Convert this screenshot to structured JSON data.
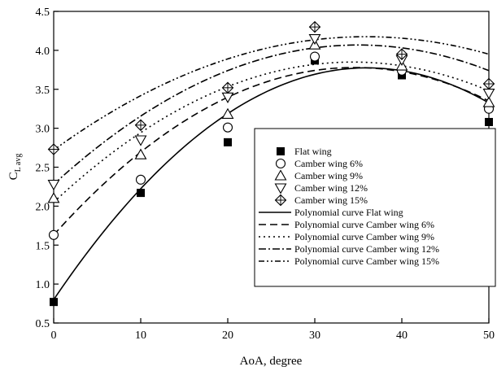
{
  "chart_data": {
    "type": "scatter",
    "xlabel": "AoA, degree",
    "ylabel_main": "C",
    "ylabel_sub": "L avg",
    "xlim": [
      0,
      50
    ],
    "ylim": [
      0.5,
      4.5
    ],
    "xticks": [
      0,
      10,
      20,
      30,
      40,
      50
    ],
    "xtick_labels": [
      "0",
      "10",
      "20",
      "30",
      "40",
      "50"
    ],
    "yticks": [
      0.5,
      1.0,
      1.5,
      2.0,
      2.5,
      3.0,
      3.5,
      4.0,
      4.5
    ],
    "ytick_labels": [
      "0.5",
      "1.0",
      "1.5",
      "2.0",
      "2.5",
      "3.0",
      "3.5",
      "4.0",
      "4.5"
    ],
    "grid": false,
    "legend_position": "center-right",
    "x": [
      0,
      10,
      20,
      30,
      40,
      50
    ],
    "series": [
      {
        "name": "Flat wing",
        "marker": "filled-square",
        "values": [
          0.77,
          2.17,
          2.82,
          3.87,
          3.68,
          3.08
        ]
      },
      {
        "name": "Camber wing 6%",
        "marker": "circle",
        "values": [
          1.63,
          2.34,
          3.01,
          3.92,
          3.74,
          3.25
        ]
      },
      {
        "name": "Camber wing 9%",
        "marker": "triangle-up",
        "values": [
          2.1,
          2.66,
          3.18,
          4.07,
          3.8,
          3.33
        ]
      },
      {
        "name": "Camber wing 12%",
        "marker": "triangle-down",
        "values": [
          2.28,
          2.85,
          3.4,
          4.15,
          3.88,
          3.45
        ]
      },
      {
        "name": "Camber wing 15%",
        "marker": "crossed-diamond",
        "values": [
          2.73,
          3.04,
          3.52,
          4.3,
          3.95,
          3.57
        ]
      }
    ],
    "curves": [
      {
        "name": "Polynomial curve Flat wing",
        "dash": "solid",
        "coeffs": [
          0.8,
          0.1653,
          -0.002296
        ]
      },
      {
        "name": "Polynomial curve Camber wing 6%",
        "dash": "dashed",
        "coeffs": [
          1.63,
          0.1244,
          -0.0018
        ]
      },
      {
        "name": "Polynomial curve Camber wing 9%",
        "dash": "dotted",
        "coeffs": [
          2.05,
          0.1046,
          -0.00152
        ]
      },
      {
        "name": "Polynomial curve Camber wing 12%",
        "dash": "dash-dot",
        "coeffs": [
          2.28,
          0.1022,
          -0.00146
        ]
      },
      {
        "name": "Polynomial curve Camber wing 15%",
        "dash": "dash-dot-dot",
        "coeffs": [
          2.72,
          0.0811,
          -0.00113
        ]
      }
    ]
  }
}
